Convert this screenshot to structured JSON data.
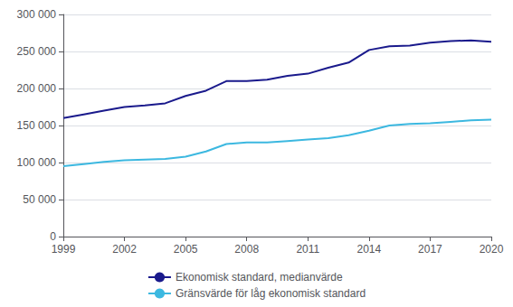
{
  "chart_data": {
    "type": "line",
    "x": [
      1999,
      2000,
      2001,
      2002,
      2003,
      2004,
      2005,
      2006,
      2007,
      2008,
      2009,
      2010,
      2011,
      2012,
      2013,
      2014,
      2015,
      2016,
      2017,
      2018,
      2019,
      2020
    ],
    "series": [
      {
        "name": "Ekonomisk standard, medianvärde",
        "color": "#1a1a8c",
        "values": [
          160000,
          165000,
          170000,
          175000,
          177000,
          180000,
          190000,
          197000,
          210000,
          210000,
          212000,
          217000,
          220000,
          228000,
          235000,
          252000,
          257000,
          258000,
          262000,
          264000,
          265000,
          263000
        ]
      },
      {
        "name": "Gränsvärde för låg ekonomisk standard",
        "color": "#3cb8e0",
        "values": [
          95000,
          98000,
          101000,
          103000,
          104000,
          105000,
          108000,
          115000,
          125000,
          127000,
          127000,
          129000,
          131000,
          133000,
          137000,
          143000,
          150000,
          152000,
          153000,
          155000,
          157000,
          158000
        ]
      }
    ],
    "xlim": [
      1999,
      2020
    ],
    "xticks": [
      1999,
      2002,
      2005,
      2008,
      2011,
      2014,
      2017,
      2020
    ],
    "ylim": [
      0,
      300000
    ],
    "yticks": [
      0,
      {
        "value": 50000,
        "label": "50 000"
      },
      {
        "value": 100000,
        "label": "100 000"
      },
      {
        "value": 150000,
        "label": "150 000"
      },
      {
        "value": 200000,
        "label": "200 000"
      },
      {
        "value": 250000,
        "label": "250 000"
      },
      {
        "value": 300000,
        "label": "300 000"
      }
    ],
    "grid": true,
    "legend": "bottom"
  }
}
